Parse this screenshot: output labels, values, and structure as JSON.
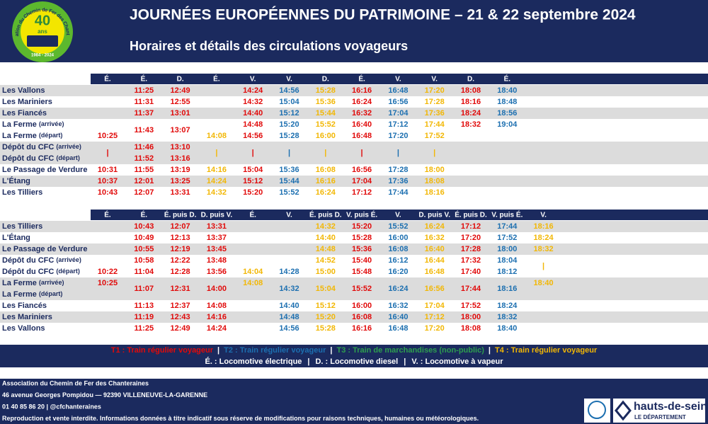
{
  "header": {
    "title": "JOURNÉES EUROPÉENNES DU PATRIMOINE – 21 & 22 septembre 2024",
    "subtitle": "Horaires et détails des circulations voyageurs"
  },
  "logo": {
    "ring": "Association du Chemin de Fer des Chanteraines",
    "number": "40",
    "unit": "ans",
    "years": "1984 - 2024"
  },
  "tables": [
    {
      "headers": [
        "É.",
        "É.",
        "D.",
        "É.",
        "V.",
        "V.",
        "D.",
        "É.",
        "V.",
        "V.",
        "D.",
        "É."
      ],
      "colors": [
        "#e10a0a",
        "#e10a0a",
        "#e10a0a",
        "#f2b705",
        "#e10a0a",
        "#1c6fb0",
        "#f2b705",
        "#e10a0a",
        "#1c6fb0",
        "#f2b705",
        "#e10a0a",
        "#1c6fb0"
      ],
      "groups": [
        {
          "lines": [
            {
              "stop": "Les Vallons"
            }
          ],
          "times": [
            null,
            "11:25",
            "12:49",
            null,
            "14:24",
            "14:56",
            "15:28",
            "16:16",
            "16:48",
            "17:20",
            "18:08",
            "18:40"
          ]
        },
        {
          "lines": [
            {
              "stop": "Les Mariniers"
            }
          ],
          "times": [
            null,
            "11:31",
            "12:55",
            null,
            "14:32",
            "15:04",
            "15:36",
            "16:24",
            "16:56",
            "17:28",
            "18:16",
            "18:48"
          ]
        },
        {
          "lines": [
            {
              "stop": "Les Fiancés"
            }
          ],
          "times": [
            null,
            "11:37",
            "13:01",
            null,
            "14:40",
            "15:12",
            "15:44",
            "16:32",
            "17:04",
            "17:36",
            "18:24",
            "18:56"
          ]
        },
        {
          "lines": [
            {
              "stop": "La Ferme",
              "note": "(arrivée)"
            },
            {
              "stop": "La Ferme",
              "note": "(départ)"
            }
          ],
          "times": [
            [
              null,
              "10:25"
            ],
            "11:43",
            "13:07",
            [
              null,
              "14:08"
            ],
            [
              "14:48",
              "14:56"
            ],
            [
              "15:20",
              "15:28"
            ],
            [
              "15:52",
              "16:00"
            ],
            [
              "16:40",
              "16:48"
            ],
            [
              "17:12",
              "17:20"
            ],
            [
              "17:44",
              "17:52"
            ],
            [
              "18:32",
              null
            ],
            [
              "19:04",
              null
            ]
          ]
        },
        {
          "lines": [
            {
              "stop": "Dépôt du CFC",
              "note": "(arrivée)"
            },
            {
              "stop": "Dépôt du CFC",
              "note": "(départ)"
            }
          ],
          "times": [
            "|",
            [
              "11:46",
              "11:52"
            ],
            [
              "13:10",
              "13:16"
            ],
            "|",
            "|",
            "|",
            "|",
            "|",
            "|",
            "|",
            null,
            null
          ]
        },
        {
          "lines": [
            {
              "stop": "Le Passage de Verdure"
            }
          ],
          "times": [
            "10:31",
            "11:55",
            "13:19",
            "14:16",
            "15:04",
            "15:36",
            "16:08",
            "16:56",
            "17:28",
            "18:00",
            null,
            null
          ]
        },
        {
          "lines": [
            {
              "stop": "L'Étang"
            }
          ],
          "times": [
            "10:37",
            "12:01",
            "13:25",
            "14:24",
            "15:12",
            "15:44",
            "16:16",
            "17:04",
            "17:36",
            "18:08",
            null,
            null
          ]
        },
        {
          "lines": [
            {
              "stop": "Les Tilliers"
            }
          ],
          "times": [
            "10:43",
            "12:07",
            "13:31",
            "14:32",
            "15:20",
            "15:52",
            "16:24",
            "17:12",
            "17:44",
            "18:16",
            null,
            null
          ]
        }
      ]
    },
    {
      "headers": [
        "É.",
        "É.",
        "É. puis D.",
        "D. puis V.",
        "É.",
        "V.",
        "É. puis D.",
        "V. puis É.",
        "V.",
        "D. puis V.",
        "É. puis D.",
        "V. puis É.",
        "V."
      ],
      "colors": [
        "#e10a0a",
        "#e10a0a",
        "#e10a0a",
        "#e10a0a",
        "#f2b705",
        "#1c6fb0",
        "#f2b705",
        "#e10a0a",
        "#1c6fb0",
        "#f2b705",
        "#e10a0a",
        "#1c6fb0",
        "#f2b705"
      ],
      "groups": [
        {
          "lines": [
            {
              "stop": "Les Tilliers"
            }
          ],
          "times": [
            null,
            "10:43",
            "12:07",
            "13:31",
            null,
            null,
            "14:32",
            "15:20",
            "15:52",
            "16:24",
            "17:12",
            "17:44",
            "18:16"
          ]
        },
        {
          "lines": [
            {
              "stop": "L'Étang"
            }
          ],
          "times": [
            null,
            "10:49",
            "12:13",
            "13:37",
            null,
            null,
            "14:40",
            "15:28",
            "16:00",
            "16:32",
            "17:20",
            "17:52",
            "18:24"
          ]
        },
        {
          "lines": [
            {
              "stop": "Le Passage de Verdure"
            }
          ],
          "times": [
            null,
            "10:55",
            "12:19",
            "13:45",
            null,
            null,
            "14:48",
            "15:36",
            "16:08",
            "16:40",
            "17:28",
            "18:00",
            "18:32"
          ]
        },
        {
          "lines": [
            {
              "stop": "Dépôt du CFC",
              "note": "(arrivée)"
            },
            {
              "stop": "Dépôt du CFC",
              "note": "(départ)"
            }
          ],
          "times": [
            [
              null,
              "10:22"
            ],
            [
              "10:58",
              "11:04"
            ],
            [
              "12:22",
              "12:28"
            ],
            [
              "13:48",
              "13:56"
            ],
            [
              null,
              "14:04"
            ],
            [
              null,
              "14:28"
            ],
            [
              "14:52",
              "15:00"
            ],
            [
              "15:40",
              "15:48"
            ],
            [
              "16:12",
              "16:20"
            ],
            [
              "16:44",
              "16:48"
            ],
            [
              "17:32",
              "17:40"
            ],
            [
              "18:04",
              "18:12"
            ],
            "|"
          ]
        },
        {
          "lines": [
            {
              "stop": "La Ferme",
              "note": "(arrivée)"
            },
            {
              "stop": "La Ferme",
              "note": "(départ)"
            }
          ],
          "times": [
            [
              "10:25",
              null
            ],
            "11:07",
            "12:31",
            "14:00",
            [
              "14:08",
              null
            ],
            "14:32",
            "15:04",
            "15:52",
            "16:24",
            "16:56",
            "17:44",
            "18:16",
            [
              "18:40",
              null
            ]
          ]
        },
        {
          "lines": [
            {
              "stop": "Les Fiancés"
            }
          ],
          "times": [
            null,
            "11:13",
            "12:37",
            "14:08",
            null,
            "14:40",
            "15:12",
            "16:00",
            "16:32",
            "17:04",
            "17:52",
            "18:24",
            null
          ]
        },
        {
          "lines": [
            {
              "stop": "Les Mariniers"
            }
          ],
          "times": [
            null,
            "11:19",
            "12:43",
            "14:16",
            null,
            "14:48",
            "15:20",
            "16:08",
            "16:40",
            "17:12",
            "18:00",
            "18:32",
            null
          ]
        },
        {
          "lines": [
            {
              "stop": "Les Vallons"
            }
          ],
          "times": [
            null,
            "11:25",
            "12:49",
            "14:24",
            null,
            "14:56",
            "15:28",
            "16:16",
            "16:48",
            "17:20",
            "18:08",
            "18:40",
            null
          ]
        }
      ]
    }
  ],
  "legend": {
    "separator": "|",
    "trains": [
      {
        "text": "T1 : Train régulier voyageur",
        "color": "#e10a0a"
      },
      {
        "text": "T2 : Train régulier voyageur",
        "color": "#1c6fb0"
      },
      {
        "text": "T3 : Train de marchandises (non-public)",
        "color": "#2e9e4f"
      },
      {
        "text": "T4 : Train régulier voyageur",
        "color": "#f2b705"
      }
    ],
    "locomotives": [
      "É. : Locomotive électrique",
      "D. : Locomotive diesel",
      "V. : Locomotive à vapeur"
    ]
  },
  "footer": {
    "lines": [
      "Association du Chemin de Fer des Chanteraines",
      "46 avenue Georges Pompidou — 92390 VILLENEUVE-LA-GARENNE",
      "01 40 85 86 20 | @cfchanteraines",
      "Reproduction et vente interdite. Informations données à titre indicatif sous réserve de modifications pour raisons techniques, humaines ou météorologiques."
    ],
    "partner": {
      "name": "hauts-de-seine",
      "tagline": "LE DÉPARTEMENT"
    }
  }
}
